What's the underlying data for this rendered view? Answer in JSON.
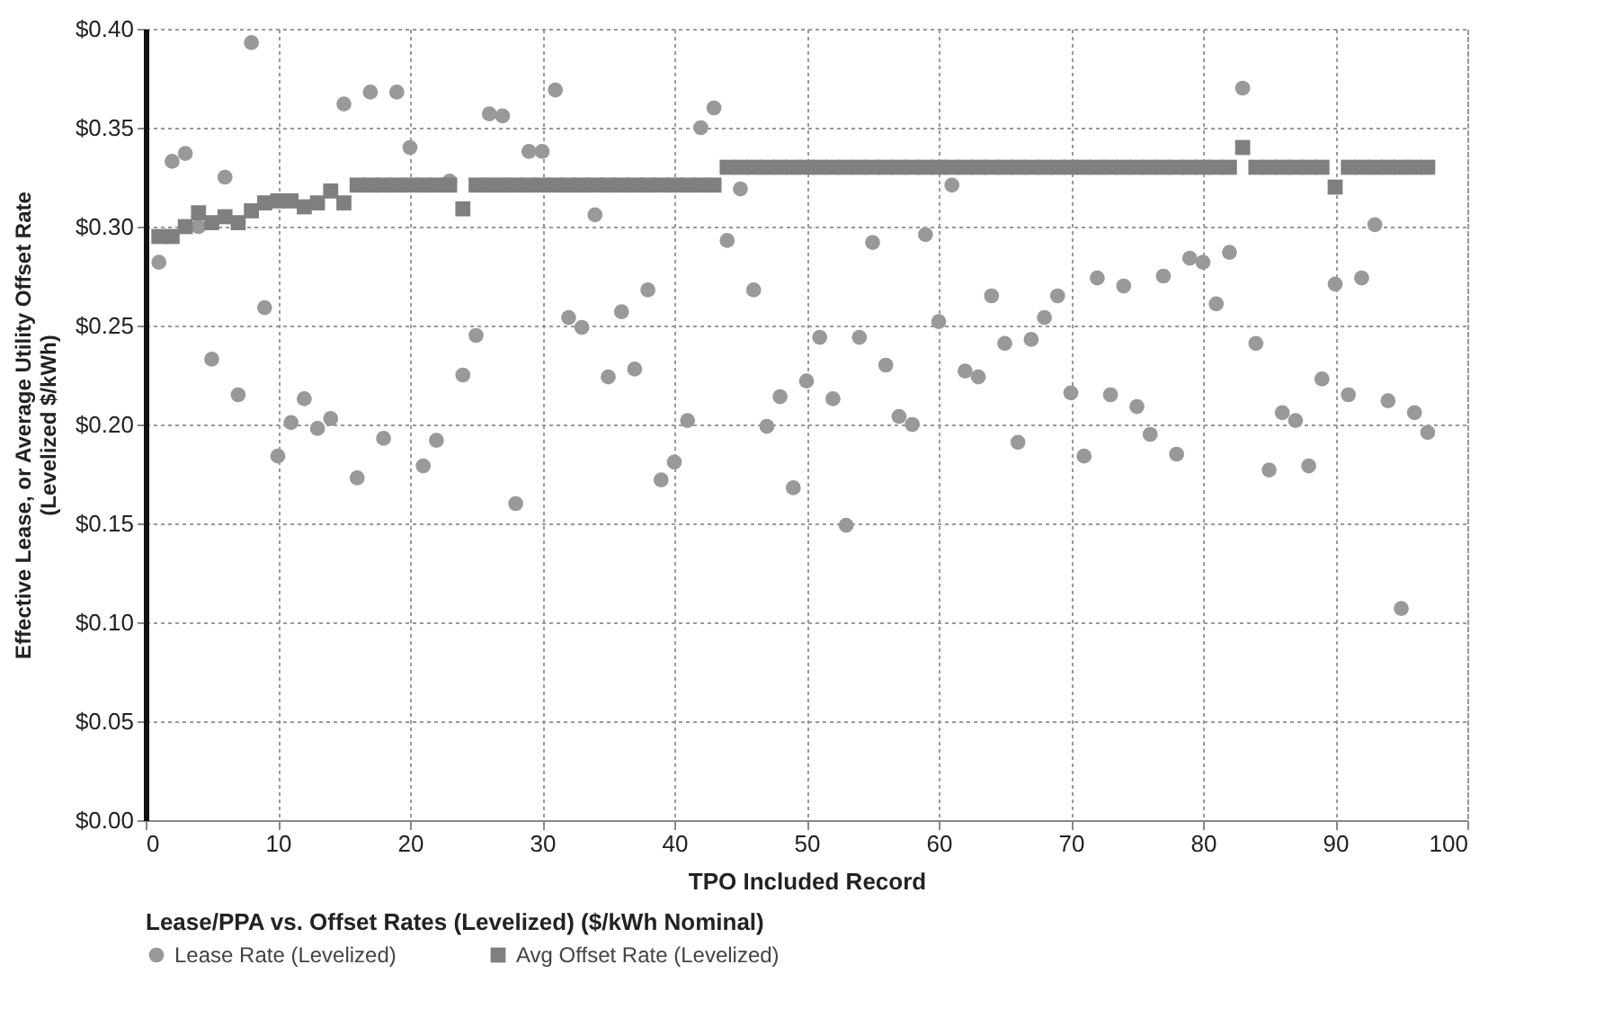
{
  "chart_data": {
    "type": "scatter",
    "xlabel": "TPO Included Record",
    "ylabel": "Effective Lease, or Average Utility Offset Rate (Levelized $/kWh)",
    "legend_title": "Lease/PPA vs. Offset Rates (Levelized) ($/kWh Nominal)",
    "legend": "bottom",
    "grid": true,
    "x": [
      1,
      2,
      3,
      4,
      5,
      6,
      7,
      8,
      9,
      10,
      11,
      12,
      13,
      14,
      15,
      16,
      17,
      18,
      19,
      20,
      21,
      22,
      23,
      24,
      25,
      26,
      27,
      28,
      29,
      30,
      31,
      32,
      33,
      34,
      35,
      36,
      37,
      38,
      39,
      40,
      41,
      42,
      43,
      44,
      45,
      46,
      47,
      48,
      49,
      50,
      51,
      52,
      53,
      54,
      55,
      56,
      57,
      58,
      59,
      60,
      61,
      62,
      63,
      64,
      65,
      66,
      67,
      68,
      69,
      70,
      71,
      72,
      73,
      74,
      75,
      76,
      77,
      78,
      79,
      80,
      81,
      82,
      83,
      84,
      85,
      86,
      87,
      88,
      89,
      90,
      91,
      92,
      93,
      94,
      95,
      96,
      97
    ],
    "xlim": [
      0,
      100
    ],
    "xticks": [
      0,
      10,
      20,
      30,
      40,
      50,
      60,
      70,
      80,
      90,
      100
    ],
    "ylim": [
      0,
      0.4
    ],
    "yticks": [
      {
        "value": 0,
        "label": "$0.00"
      },
      {
        "value": 0.05,
        "label": "$0.05"
      },
      {
        "value": 0.1,
        "label": "$0.10"
      },
      {
        "value": 0.15,
        "label": "$0.15"
      },
      {
        "value": 0.2,
        "label": "$0.20"
      },
      {
        "value": 0.25,
        "label": "$0.25"
      },
      {
        "value": 0.3,
        "label": "$0.30"
      },
      {
        "value": 0.35,
        "label": "$0.35"
      },
      {
        "value": 0.4,
        "label": "$0.40"
      }
    ],
    "series": [
      {
        "name": "Lease Rate (Levelized)",
        "color": "#999999",
        "marker": "circle",
        "values": [
          0.282,
          0.333,
          0.337,
          0.3,
          0.233,
          0.325,
          0.215,
          0.393,
          0.259,
          0.184,
          0.201,
          0.213,
          0.198,
          0.203,
          0.362,
          0.173,
          0.368,
          0.193,
          0.368,
          0.34,
          0.179,
          0.192,
          0.323,
          0.225,
          0.245,
          0.357,
          0.356,
          0.16,
          0.338,
          0.338,
          0.369,
          0.254,
          0.249,
          0.306,
          0.224,
          0.257,
          0.228,
          0.268,
          0.172,
          0.181,
          0.202,
          0.35,
          0.36,
          0.293,
          0.319,
          0.268,
          0.199,
          0.214,
          0.168,
          0.222,
          0.244,
          0.213,
          0.149,
          0.244,
          0.292,
          0.23,
          0.204,
          0.2,
          0.296,
          0.252,
          0.321,
          0.227,
          0.224,
          0.265,
          0.241,
          0.191,
          0.243,
          0.254,
          0.265,
          0.216,
          0.184,
          0.274,
          0.215,
          0.27,
          0.209,
          0.195,
          0.275,
          0.185,
          0.284,
          0.282,
          0.261,
          0.287,
          0.37,
          0.241,
          0.177,
          0.206,
          0.202,
          0.179,
          0.223,
          0.271,
          0.215,
          0.274,
          0.301,
          0.212,
          0.107,
          0.206,
          0.196
        ]
      },
      {
        "name": "Avg Offset Rate (Levelized)",
        "color": "#7f7f7f",
        "marker": "square",
        "values": [
          0.295,
          0.295,
          0.3,
          0.307,
          0.302,
          0.305,
          0.302,
          0.308,
          0.312,
          0.313,
          0.313,
          0.31,
          0.312,
          0.318,
          0.312,
          0.321,
          0.321,
          0.321,
          0.321,
          0.321,
          0.321,
          0.321,
          0.321,
          0.309,
          0.321,
          0.321,
          0.321,
          0.321,
          0.321,
          0.321,
          0.321,
          0.321,
          0.321,
          0.321,
          0.321,
          0.321,
          0.321,
          0.321,
          0.321,
          0.321,
          0.321,
          0.321,
          0.321,
          0.33,
          0.33,
          0.33,
          0.33,
          0.33,
          0.33,
          0.33,
          0.33,
          0.33,
          0.33,
          0.33,
          0.33,
          0.33,
          0.33,
          0.33,
          0.33,
          0.33,
          0.33,
          0.33,
          0.33,
          0.33,
          0.33,
          0.33,
          0.33,
          0.33,
          0.33,
          0.33,
          0.33,
          0.33,
          0.33,
          0.33,
          0.33,
          0.33,
          0.33,
          0.33,
          0.33,
          0.33,
          0.33,
          0.33,
          0.34,
          0.33,
          0.33,
          0.33,
          0.33,
          0.33,
          0.33,
          0.32,
          0.33,
          0.33,
          0.33,
          0.33,
          0.33,
          0.33,
          0.33
        ]
      }
    ]
  }
}
